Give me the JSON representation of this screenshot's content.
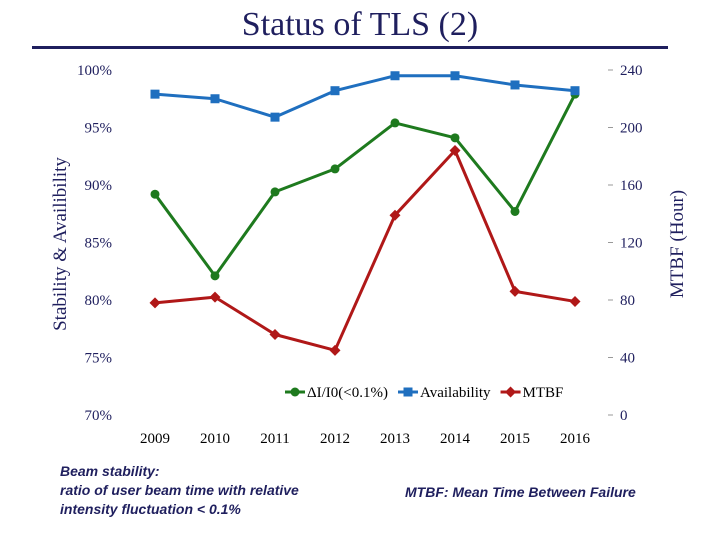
{
  "slide": {
    "title": "Status of TLS (2)",
    "beam_note": [
      "Beam stability:",
      "ratio of user beam time with relative",
      "intensity fluctuation < 0.1%"
    ],
    "mtbf_note": "MTBF: Mean Time Between Failure"
  },
  "chart_data": {
    "type": "line",
    "categories": [
      "2009",
      "2010",
      "2011",
      "2012",
      "2013",
      "2014",
      "2015",
      "2016"
    ],
    "series": [
      {
        "name": "ΔI/I0(<0.1%)",
        "axis": "left",
        "color": "#1e7a1e",
        "marker": "circle",
        "values": [
          89.2,
          82.1,
          89.4,
          91.4,
          95.4,
          94.1,
          87.7,
          97.9
        ]
      },
      {
        "name": "Availability",
        "axis": "left",
        "color": "#1f6fbf",
        "marker": "square",
        "values": [
          97.9,
          97.5,
          95.9,
          98.2,
          99.5,
          99.5,
          98.7,
          98.2
        ]
      },
      {
        "name": "MTBF",
        "axis": "right",
        "color": "#b01818",
        "marker": "diamond",
        "values": [
          78,
          82,
          56,
          45,
          139,
          184,
          86,
          79
        ]
      }
    ],
    "y_left": {
      "label": "Stability & Availibility",
      "ylim": [
        70,
        100
      ],
      "ticks": [
        70,
        75,
        80,
        85,
        90,
        95,
        100
      ],
      "tick_labels": [
        "70%",
        "75%",
        "80%",
        "85%",
        "90%",
        "95%",
        "100%"
      ]
    },
    "y_right": {
      "label": "MTBF (Hour)",
      "ylim": [
        0,
        240
      ],
      "ticks": [
        0,
        40,
        80,
        120,
        160,
        200,
        240
      ],
      "tick_labels": [
        "0",
        "40",
        "80",
        "120",
        "160",
        "200",
        "240"
      ]
    },
    "legend": {
      "placement": "bottom-center"
    },
    "grid": false
  }
}
